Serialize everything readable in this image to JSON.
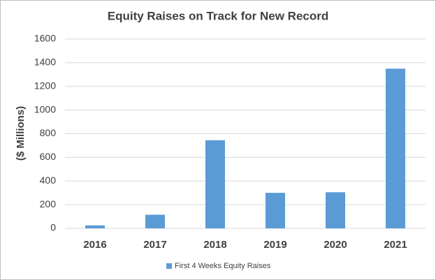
{
  "chart_data": {
    "type": "bar",
    "title": "Equity Raises on Track for New Record",
    "y_label": "($ Millions)",
    "categories": [
      "2016",
      "2017",
      "2018",
      "2019",
      "2020",
      "2021"
    ],
    "series": [
      {
        "name": "First 4 Weeks Equity Raises",
        "color": "#5b9bd5",
        "values": [
          25,
          115,
          745,
          300,
          305,
          1350
        ]
      }
    ],
    "ylim": [
      0,
      1600
    ],
    "yticks": [
      0,
      200,
      400,
      600,
      800,
      1000,
      1200,
      1400,
      1600
    ],
    "grid": true,
    "legend": "bottom"
  }
}
